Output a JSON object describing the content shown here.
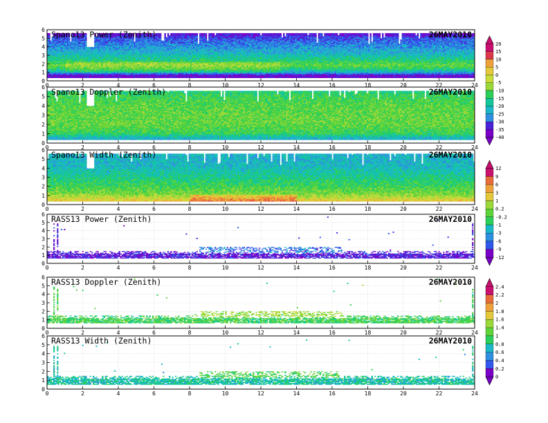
{
  "date_label": "26MAY2010",
  "x_axis": {
    "range": [
      0,
      24
    ],
    "ticks": [
      0,
      2,
      4,
      6,
      8,
      10,
      12,
      14,
      16,
      18,
      20,
      22,
      24
    ]
  },
  "y_axis": {
    "range": [
      0,
      6
    ],
    "ticks": [
      0,
      1,
      2,
      3,
      4,
      5,
      6
    ]
  },
  "panels": [
    {
      "id": "spano-power",
      "title": "Spano13 Power (Zenith)",
      "kind": "dense",
      "variable": "power",
      "scale": "power",
      "profile": [
        [
          0.6,
          0.05
        ],
        [
          0.9,
          0.25
        ],
        [
          1.3,
          0.4
        ],
        [
          1.8,
          0.5
        ],
        [
          2.4,
          0.4
        ],
        [
          3.2,
          0.3
        ],
        [
          4.2,
          0.22
        ],
        [
          5.0,
          0.15
        ],
        [
          5.5,
          0.05
        ]
      ],
      "top_km": 5.5
    },
    {
      "id": "spano-doppler",
      "title": "Spano13 Doppler (Zenith)",
      "kind": "dense",
      "variable": "doppler",
      "scale": "power",
      "profile": [
        [
          0.5,
          0.3
        ],
        [
          1.0,
          0.45
        ],
        [
          2.0,
          0.5
        ],
        [
          3.0,
          0.5
        ],
        [
          4.0,
          0.48
        ],
        [
          5.0,
          0.45
        ],
        [
          5.5,
          0.4
        ]
      ],
      "top_km": 5.5
    },
    {
      "id": "spano-width",
      "title": "Spano13 Width (Zenith)",
      "kind": "dense",
      "variable": "width",
      "scale": "width",
      "profile": [
        [
          0.4,
          0.7
        ],
        [
          0.8,
          0.6
        ],
        [
          1.2,
          0.52
        ],
        [
          2.0,
          0.45
        ],
        [
          3.0,
          0.38
        ],
        [
          4.0,
          0.32
        ],
        [
          5.0,
          0.3
        ],
        [
          5.5,
          0.3
        ]
      ],
      "top_km": 5.5
    },
    {
      "id": "rass-power",
      "title": "RASS13 Power (Zenith)",
      "kind": "sparse",
      "variable": "power",
      "scale": "width",
      "band_low_km": 0.6,
      "band_high_km": 1.5,
      "level": 0.08
    },
    {
      "id": "rass-doppler",
      "title": "RASS13 Doppler (Zenith)",
      "kind": "sparse",
      "variable": "doppler",
      "scale": "doppler",
      "band_low_km": 0.6,
      "band_high_km": 1.5,
      "level": 0.45
    },
    {
      "id": "rass-width",
      "title": "RASS13 Width (Zenith)",
      "kind": "sparse",
      "variable": "width",
      "scale": "doppler",
      "band_low_km": 0.5,
      "band_high_km": 1.5,
      "level": 0.35
    }
  ],
  "colorbars": [
    {
      "id": "power",
      "labels": [
        "20",
        "15",
        "10",
        "5",
        "0",
        "-5",
        "-10",
        "-15",
        "-20",
        "-25",
        "-30",
        "-35",
        "-40"
      ]
    },
    {
      "id": "width",
      "labels": [
        "12",
        "9",
        "6",
        "3",
        "1",
        "0.2",
        "-0.2",
        "-1",
        "-3",
        "-6",
        "-9",
        "-12"
      ]
    },
    {
      "id": "doppler",
      "labels": [
        "2.4",
        "2.2",
        "2",
        "1.8",
        "1.6",
        "1.4",
        "1",
        "0.8",
        "0.6",
        "0.4",
        "0.2",
        "0"
      ]
    }
  ],
  "chart_data": [
    {
      "type": "heatmap",
      "title": "Spano13 Power (Zenith)",
      "x_range": [
        0,
        24
      ],
      "y_range": [
        0,
        6
      ],
      "date": "26MAY2010",
      "color_scale": "power"
    },
    {
      "type": "heatmap",
      "title": "Spano13 Doppler (Zenith)",
      "x_range": [
        0,
        24
      ],
      "y_range": [
        0,
        6
      ],
      "date": "26MAY2010",
      "color_scale": "power"
    },
    {
      "type": "heatmap",
      "title": "Spano13 Width (Zenith)",
      "x_range": [
        0,
        24
      ],
      "y_range": [
        0,
        6
      ],
      "date": "26MAY2010",
      "color_scale": "width"
    },
    {
      "type": "heatmap",
      "title": "RASS13 Power (Zenith)",
      "x_range": [
        0,
        24
      ],
      "y_range": [
        0,
        6
      ],
      "date": "26MAY2010",
      "color_scale": "width"
    },
    {
      "type": "heatmap",
      "title": "RASS13 Doppler (Zenith)",
      "x_range": [
        0,
        24
      ],
      "y_range": [
        0,
        6
      ],
      "date": "26MAY2010",
      "color_scale": "doppler"
    },
    {
      "type": "heatmap",
      "title": "RASS13 Width (Zenith)",
      "x_range": [
        0,
        24
      ],
      "y_range": [
        0,
        6
      ],
      "date": "26MAY2010",
      "color_scale": "doppler"
    }
  ]
}
